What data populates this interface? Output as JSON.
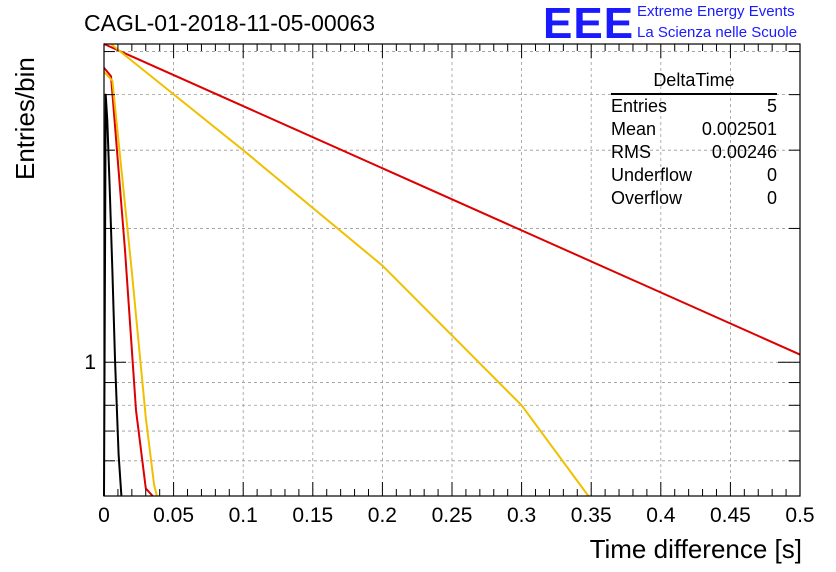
{
  "header": {
    "title": "CAGL-01-2018-11-05-00063",
    "logo_text": "EEE",
    "logo_line1": "Extreme Energy Events",
    "logo_line2": "La Scienza nelle Scuole"
  },
  "stats_box": {
    "title": "DeltaTime",
    "rows": [
      {
        "label": "Entries",
        "value": "5"
      },
      {
        "label": "Mean",
        "value": "0.002501"
      },
      {
        "label": "RMS",
        "value": "0.00246"
      },
      {
        "label": "Underflow",
        "value": "0"
      },
      {
        "label": "Overflow",
        "value": "0"
      }
    ]
  },
  "chart_data": {
    "type": "line",
    "title": "CAGL-01-2018-11-05-00063",
    "xlabel": "Time difference [s]",
    "ylabel": "Entries/bin",
    "xlim": [
      0,
      0.5
    ],
    "ylim": [
      0.5,
      5.2
    ],
    "y_scale": "log",
    "grid": true,
    "x_ticks": [
      "0",
      "0.05",
      "0.1",
      "0.15",
      "0.2",
      "0.25",
      "0.3",
      "0.35",
      "0.4",
      "0.45",
      "0.5"
    ],
    "x_tick_values": [
      0,
      0.05,
      0.1,
      0.15,
      0.2,
      0.25,
      0.3,
      0.35,
      0.4,
      0.45,
      0.5
    ],
    "y_tick_labels": [
      {
        "value": 1,
        "label": "1"
      }
    ],
    "series": [
      {
        "color": "#000000",
        "x": [
          0.0,
          0.0012,
          0.0024,
          0.004,
          0.006,
          0.008,
          0.0105,
          0.0125
        ],
        "y": [
          0.5,
          4.0,
          3.5,
          2.5,
          1.6,
          1.0,
          0.62,
          0.5
        ]
      },
      {
        "color": "#dd0000",
        "x": [
          0.0,
          0.005,
          0.015,
          0.023,
          0.03,
          0.035
        ],
        "y": [
          4.6,
          4.4,
          1.8,
          0.78,
          0.52,
          0.5
        ]
      },
      {
        "color": "#f0c000",
        "x": [
          0.0,
          0.006,
          0.02,
          0.03,
          0.036,
          0.038
        ],
        "y": [
          4.5,
          4.3,
          1.6,
          0.75,
          0.53,
          0.5
        ]
      },
      {
        "color": "#dd0000",
        "x": [
          0.0,
          0.5
        ],
        "y": [
          5.2,
          1.04
        ]
      },
      {
        "color": "#f0c000",
        "x": [
          0.005,
          0.1,
          0.2,
          0.3,
          0.348
        ],
        "y": [
          5.2,
          3.0,
          1.65,
          0.8,
          0.5
        ]
      }
    ]
  }
}
